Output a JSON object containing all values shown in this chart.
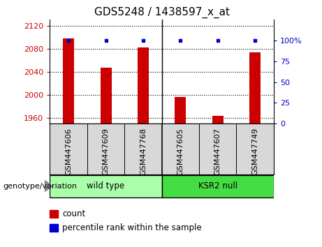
{
  "title": "GDS5248 / 1438597_x_at",
  "categories": [
    "GSM447606",
    "GSM447609",
    "GSM447768",
    "GSM447605",
    "GSM447607",
    "GSM447749"
  ],
  "counts": [
    2098,
    2047,
    2082,
    1996,
    1963,
    2073
  ],
  "percentiles": [
    100,
    100,
    100,
    100,
    100,
    100
  ],
  "ylim_left": [
    1950,
    2130
  ],
  "ylim_right": [
    0,
    125
  ],
  "yticks_left": [
    1960,
    2000,
    2040,
    2080,
    2120
  ],
  "yticks_left_labels": [
    "1960",
    "2000",
    "2040",
    "2080",
    "2120"
  ],
  "yticks_right": [
    0,
    25,
    50,
    75,
    100
  ],
  "yticks_right_labels": [
    "0",
    "25",
    "50",
    "75",
    "100%"
  ],
  "bar_color": "#cc0000",
  "dot_color": "#0000cc",
  "groups": [
    {
      "label": "wild type",
      "indices": [
        0,
        1,
        2
      ],
      "color": "#aaffaa"
    },
    {
      "label": "KSR2 null",
      "indices": [
        3,
        4,
        5
      ],
      "color": "#44dd44"
    }
  ],
  "group_label": "genotype/variation",
  "legend_items": [
    {
      "color": "#cc0000",
      "label": "count"
    },
    {
      "color": "#0000cc",
      "label": "percentile rank within the sample"
    }
  ],
  "title_fontsize": 11,
  "tick_fontsize": 8,
  "label_fontsize": 8.5,
  "xtick_fontsize": 8,
  "bar_width": 0.3
}
